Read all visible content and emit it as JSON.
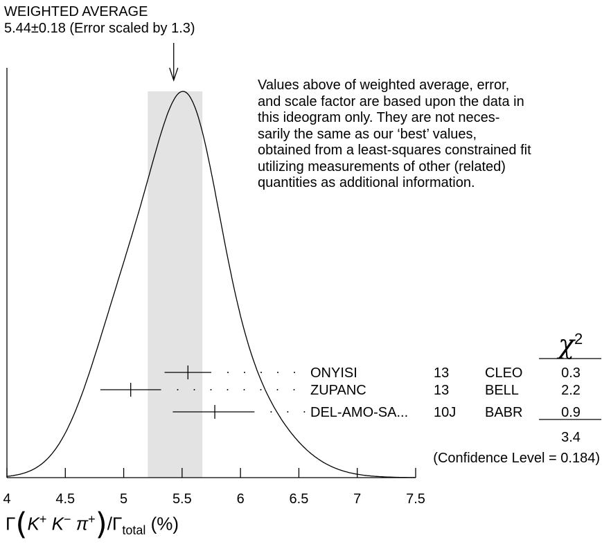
{
  "chart_data": {
    "type": "ideogram",
    "title_line1": "WEIGHTED AVERAGE",
    "title_line2": "5.44±0.18 (Error scaled by 1.3)",
    "weighted_average": 5.44,
    "error": 0.18,
    "scale_factor": 1.3,
    "xlim": [
      4,
      7.5
    ],
    "x_ticks": [
      4,
      4.5,
      5,
      5.5,
      6,
      6.5,
      7,
      7.5
    ],
    "x_tick_labels": [
      "4",
      "4.5",
      "5",
      "5.5",
      "6",
      "6.5",
      "7",
      "7.5"
    ],
    "xlabel_parts": {
      "gamma": "Γ",
      "k": "K",
      "plus": "+",
      "minus": "−",
      "pi": "π",
      "over": "/Γ",
      "sub": "total",
      "unit": "(%)"
    },
    "measurements": [
      {
        "author": "ONYISI",
        "year": "13",
        "experiment": "CLEO",
        "value": 5.55,
        "err_low": 0.2,
        "err_high": 0.2,
        "chi2": "0.3"
      },
      {
        "author": "ZUPANC",
        "year": "13",
        "experiment": "BELL",
        "value": 5.06,
        "err_low": 0.26,
        "err_high": 0.26,
        "chi2": "2.2"
      },
      {
        "author": "DEL-AMO-SA...",
        "year": "10J",
        "experiment": "BABR",
        "value": 5.78,
        "err_low": 0.36,
        "err_high": 0.34,
        "chi2": "0.9"
      }
    ],
    "chi2_header": "χ",
    "chi2_header_sup": "2",
    "chi2_total": "3.4",
    "confidence_level": "(Confidence Level = 0.184)",
    "note_lines": [
      "Values above of weighted average, error,",
      "and scale factor are based upon the data in",
      "this ideogram only.  They are not neces-",
      "sarily the same as our ‘best’ values,",
      "obtained from a least-squares constrained fit",
      "utilizing measurements of other (related)",
      "quantities as additional information."
    ],
    "colors": {
      "band": "#e3e3e3",
      "line": "#000000"
    }
  }
}
